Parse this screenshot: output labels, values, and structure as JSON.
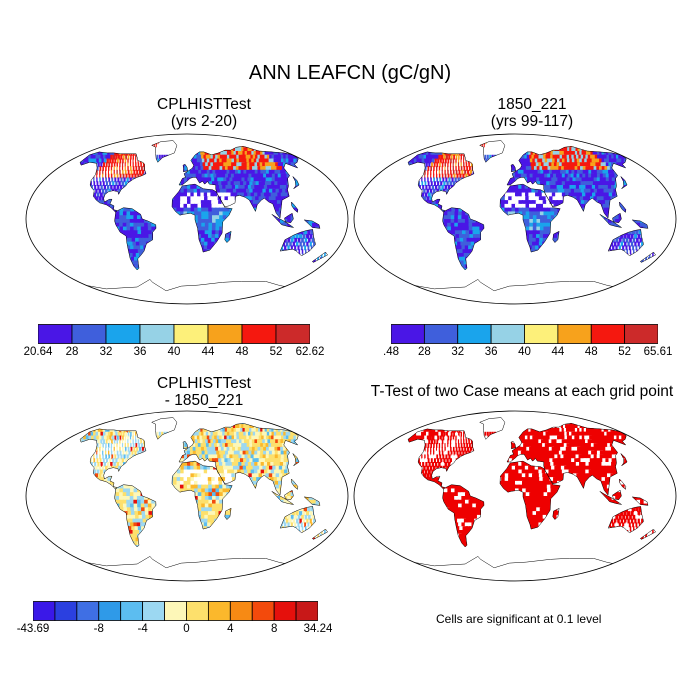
{
  "title": "ANN LEAFCN (gC/gN)",
  "panels": [
    {
      "id": "test",
      "title_line1": "CPLHISTTest",
      "title_line2": "(yrs 2-20)"
    },
    {
      "id": "ctrl",
      "title_line1": "1850_221",
      "title_line2": "(yrs 99-117)"
    },
    {
      "id": "diff",
      "title_line1": "CPLHISTTest",
      "title_line2": "- 1850_221"
    },
    {
      "id": "ttest",
      "title_line1": "T-Test of two Case means at each grid point",
      "title_line2": ""
    }
  ],
  "colorbars": {
    "test": {
      "colors": [
        "#4a16e6",
        "#3f5fdc",
        "#1aa4ec",
        "#96d2e6",
        "#fdf07a",
        "#f7a21c",
        "#f5180f",
        "#cc2a2a"
      ],
      "labels": [
        "20.64",
        "28",
        "32",
        "36",
        "40",
        "44",
        "48",
        "52",
        "62.62"
      ]
    },
    "ctrl": {
      "colors": [
        "#4a16e6",
        "#3f5fdc",
        "#1aa4ec",
        "#96d2e6",
        "#fdf07a",
        "#f7a21c",
        "#f5180f",
        "#cc2a2a"
      ],
      "labels": [
        ".48",
        "28",
        "32",
        "36",
        "40",
        "44",
        "48",
        "52",
        "65.61"
      ]
    },
    "diff": {
      "colors": [
        "#3a18e8",
        "#2b40e0",
        "#3f6fe4",
        "#2f9ae8",
        "#5cbdf0",
        "#9cd8f2",
        "#fdf7b8",
        "#fde06c",
        "#fbb82c",
        "#f78a14",
        "#f34a0c",
        "#e5100c",
        "#c81818"
      ],
      "labels": [
        {
          "text": "-43.69",
          "edge": 0
        },
        {
          "text": "-8",
          "edge": 3
        },
        {
          "text": "-4",
          "edge": 5
        },
        {
          "text": "0",
          "edge": 7
        },
        {
          "text": "4",
          "edge": 9
        },
        {
          "text": "8",
          "edge": 11
        },
        {
          "text": "34.24",
          "edge": 13
        }
      ]
    }
  },
  "ttest_note": "Cells are significant at 0.1 level",
  "ttest_color": "#ee0000"
}
